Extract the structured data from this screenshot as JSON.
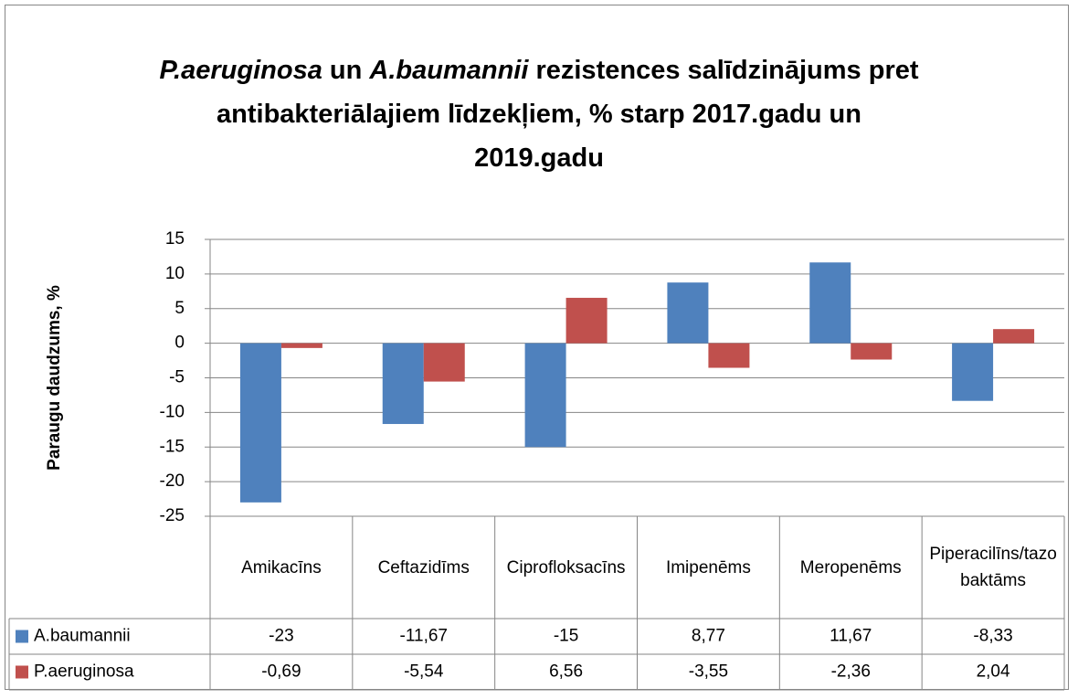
{
  "chart_data": {
    "type": "bar",
    "title_lines": [
      [
        {
          "text": "P.aeruginosa",
          "italic": true
        },
        {
          "text": " un "
        },
        {
          "text": "A.baumannii",
          "italic": true
        },
        {
          "text": " rezistences salīdzinājums pret"
        }
      ],
      [
        {
          "text": "antibakteriālajiem līdzekļiem, % starp 2017.gadu un"
        }
      ],
      [
        {
          "text": "2019.gadu"
        }
      ]
    ],
    "y_label": "Paraugu daudzums, %",
    "categories": [
      "Amikacīns",
      "Ceftazidīms",
      "Ciprofloksacīns",
      "Imipenēms",
      "Meropenēms",
      "Piperacilīns/tazobaktāms"
    ],
    "series": [
      {
        "name": "A.baumannii",
        "color": "#4f81bd",
        "values": [
          -23,
          -11.67,
          -15,
          8.77,
          11.67,
          -8.33
        ],
        "value_labels": [
          "-23",
          "-11,67",
          "-15",
          "8,77",
          "11,67",
          "-8,33"
        ]
      },
      {
        "name": "P.aeruginosa",
        "color": "#c0504d",
        "values": [
          -0.69,
          -5.54,
          6.56,
          -3.55,
          -2.36,
          2.04
        ],
        "value_labels": [
          "-0,69",
          "-5,54",
          "6,56",
          "-3,55",
          "-2,36",
          "2,04"
        ]
      }
    ],
    "ylim": [
      -25,
      15
    ],
    "yticks": [
      15,
      10,
      5,
      0,
      -5,
      -10,
      -15,
      -20,
      -25
    ],
    "grid": true,
    "data_table": true
  }
}
